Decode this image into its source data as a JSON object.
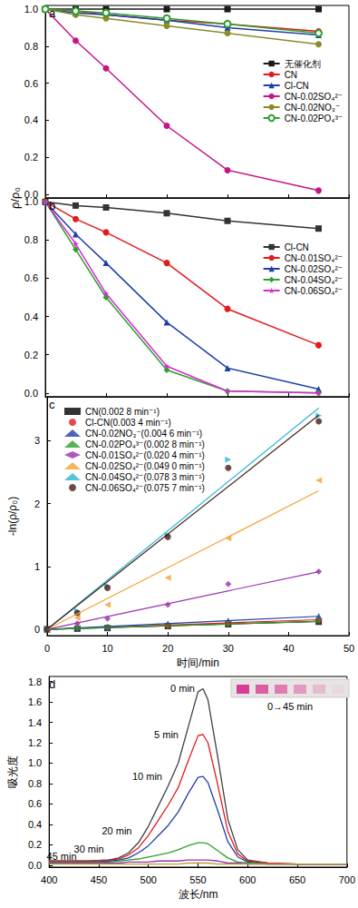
{
  "chart_data": [
    {
      "panel": "a",
      "type": "line",
      "ylabel": "ρ/ρ₀",
      "x": [
        0,
        5,
        10,
        20,
        30,
        45
      ],
      "xlim": [
        0,
        50
      ],
      "xticks": [
        0,
        10,
        20,
        30,
        40,
        50
      ],
      "ylim": [
        -0.02,
        1.02
      ],
      "yticks": [
        {
          "value": 0,
          "label": "0.0"
        },
        0.2,
        0.4,
        0.6,
        0.8,
        {
          "value": 1,
          "label": "1.0"
        }
      ],
      "tick_labels": "y",
      "grid": false,
      "legend": "right",
      "series": [
        {
          "name": "无催化剂",
          "color": "#1a1a1a",
          "marker": "square",
          "values": [
            1,
            1,
            1,
            1,
            1,
            1
          ]
        },
        {
          "name": "CN",
          "color": "#e41a1c",
          "marker": "circle",
          "values": [
            1,
            0.99,
            0.97,
            0.94,
            0.92,
            0.88
          ]
        },
        {
          "name": "Cl-CN",
          "color": "#1f3fa8",
          "marker": "triangle",
          "values": [
            1,
            0.98,
            0.97,
            0.94,
            0.9,
            0.86
          ]
        },
        {
          "name": "CN-0.02SO₄²⁻",
          "color": "#c71585",
          "marker": "circle",
          "values": [
            1,
            0.83,
            0.68,
            0.37,
            0.13,
            0.02
          ]
        },
        {
          "name": "CN-0.02NO₃⁻",
          "color": "#8b8b2a",
          "marker": "circle",
          "values": [
            1,
            0.97,
            0.95,
            0.91,
            0.87,
            0.81
          ]
        },
        {
          "name": "CN-0.02PO₄³⁻",
          "color": "#2ca02c",
          "marker": "open-circle",
          "values": [
            1,
            0.99,
            0.98,
            0.95,
            0.92,
            0.87
          ]
        }
      ]
    },
    {
      "panel": "b",
      "type": "line",
      "x": [
        0,
        5,
        10,
        20,
        30,
        45
      ],
      "xlim": [
        0,
        50
      ],
      "xticks": [
        0,
        10,
        20,
        30,
        40,
        50
      ],
      "ylim": [
        -0.02,
        1.02
      ],
      "yticks": [
        {
          "value": 0,
          "label": "0.0"
        },
        0.2,
        0.4,
        0.6,
        0.8,
        {
          "value": 1,
          "label": "1.0"
        }
      ],
      "tick_labels": "y",
      "grid": false,
      "legend": "right",
      "series": [
        {
          "name": "Cl-CN",
          "color": "#333333",
          "marker": "square",
          "values": [
            1,
            0.98,
            0.97,
            0.94,
            0.9,
            0.86
          ]
        },
        {
          "name": "CN-0.01SO₄²⁻",
          "color": "#e41a1c",
          "marker": "circle",
          "values": [
            1,
            0.91,
            0.84,
            0.68,
            0.44,
            0.25
          ]
        },
        {
          "name": "CN-0.02SO₄²⁻",
          "color": "#1f3fa8",
          "marker": "triangle",
          "values": [
            1,
            0.83,
            0.68,
            0.37,
            0.13,
            0.02
          ]
        },
        {
          "name": "CN-0.04SO₄²⁻",
          "color": "#2ca02c",
          "marker": "diamond",
          "values": [
            1,
            0.75,
            0.5,
            0.12,
            0.01,
            0
          ]
        },
        {
          "name": "CN-0.06SO₄²⁻",
          "color": "#d62ad6",
          "marker": "star",
          "values": [
            1,
            0.78,
            0.52,
            0.14,
            0.01,
            0
          ]
        }
      ]
    },
    {
      "panel": "c",
      "type": "scatter",
      "xlabel": "时间/min",
      "ylabel": "-ln(ρ/ρ₀)",
      "x": [
        0,
        5,
        10,
        20,
        30,
        45
      ],
      "fit_x": [
        0,
        45
      ],
      "xlim": [
        0,
        50
      ],
      "xticks": [
        0,
        10,
        20,
        30,
        40,
        50
      ],
      "ylim": [
        -0.1,
        3.7
      ],
      "yticks": [
        0,
        1,
        2,
        3
      ],
      "grid": false,
      "legend": "top-left",
      "series": [
        {
          "name": "CN(0.002 8 min⁻¹)",
          "color": "#000000",
          "marker": "square",
          "values": [
            0,
            0.01,
            0.02,
            0.05,
            0.08,
            0.12
          ],
          "fit": [
            0,
            0.126
          ]
        },
        {
          "name": "Cl-CN(0.003 4 min⁻¹)",
          "color": "#e41a1c",
          "marker": "circle",
          "values": [
            0,
            0.02,
            0.03,
            0.06,
            0.1,
            0.15
          ],
          "fit": [
            0,
            0.153
          ]
        },
        {
          "name": "CN-0.02NO₃⁻(0.004 6 min⁻¹)",
          "color": "#1f3fa8",
          "marker": "triangle",
          "values": [
            0,
            0.02,
            0.04,
            0.09,
            0.14,
            0.21
          ],
          "fit": [
            0,
            0.207
          ]
        },
        {
          "name": "CN-0.02PO₄³⁻(0.002 8 min⁻¹)",
          "color": "#2ca02c",
          "marker": "down-triangle",
          "values": [
            0,
            0.01,
            0.02,
            0.05,
            0.08,
            0.13
          ],
          "fit": [
            0,
            0.126
          ]
        },
        {
          "name": "CN-0.01SO₄²⁻(0.020 4 min⁻¹)",
          "color": "#9b30b0",
          "marker": "diamond",
          "values": [
            0,
            0.09,
            0.17,
            0.39,
            0.72,
            0.92
          ],
          "fit": [
            0,
            0.918
          ]
        },
        {
          "name": "CN-0.02SO₄²⁻(0.049 0 min⁻¹)",
          "color": "#f5a030",
          "marker": "left-triangle",
          "values": [
            0,
            0.18,
            0.39,
            0.82,
            1.45,
            2.37
          ],
          "fit": [
            0,
            2.205
          ]
        },
        {
          "name": "CN-0.04SO₄²⁻(0.078 3 min⁻¹)",
          "color": "#29b6d6",
          "marker": "right-triangle",
          "values": [
            0,
            0.29,
            0.69,
            1.5,
            2.7,
            3.4
          ],
          "fit": [
            0,
            3.524
          ]
        },
        {
          "name": "CN-0.06SO₄²⁻(0.075 7 min⁻¹)",
          "color": "#4b1e16",
          "marker": "circle",
          "values": [
            0,
            0.26,
            0.66,
            1.47,
            2.57,
            3.31
          ],
          "fit": [
            0,
            3.407
          ]
        }
      ]
    },
    {
      "panel": "d",
      "type": "line",
      "xlabel": "波长/nm",
      "ylabel": "吸光度",
      "annotations": [
        "0→45 min"
      ],
      "x": [
        400,
        420,
        440,
        460,
        470,
        480,
        490,
        500,
        510,
        520,
        530,
        540,
        550,
        555,
        560,
        570,
        580,
        590,
        600,
        620,
        650,
        700
      ],
      "xlim": [
        400,
        700
      ],
      "xticks": [
        400,
        450,
        500,
        550,
        600,
        650,
        700
      ],
      "ylim": [
        -0.02,
        1.85
      ],
      "yticks": [
        {
          "value": 0,
          "label": "0.0"
        },
        0.2,
        0.4,
        0.6,
        0.8,
        {
          "value": 1,
          "label": "1.0"
        },
        1.2,
        1.4,
        1.6,
        1.8
      ],
      "grid": false,
      "series": [
        {
          "name": "0 min",
          "color": "#404040",
          "values": [
            0.04,
            0.04,
            0.04,
            0.05,
            0.07,
            0.12,
            0.22,
            0.38,
            0.58,
            0.78,
            1.0,
            1.35,
            1.7,
            1.73,
            1.62,
            1.05,
            0.45,
            0.15,
            0.05,
            0.02,
            0.01,
            0.01
          ]
        },
        {
          "name": "5 min",
          "color": "#e41a1c",
          "values": [
            0.04,
            0.04,
            0.04,
            0.05,
            0.06,
            0.1,
            0.17,
            0.29,
            0.44,
            0.59,
            0.76,
            1.02,
            1.27,
            1.28,
            1.2,
            0.78,
            0.33,
            0.11,
            0.04,
            0.02,
            0.01,
            0.01
          ]
        },
        {
          "name": "10 min",
          "color": "#1f3fa8",
          "values": [
            0.03,
            0.03,
            0.03,
            0.04,
            0.05,
            0.07,
            0.12,
            0.19,
            0.29,
            0.39,
            0.52,
            0.7,
            0.86,
            0.87,
            0.81,
            0.53,
            0.23,
            0.08,
            0.03,
            0.01,
            0.01,
            0.01
          ]
        },
        {
          "name": "20 min",
          "color": "#2ca02c",
          "values": [
            0.03,
            0.03,
            0.03,
            0.03,
            0.04,
            0.05,
            0.06,
            0.08,
            0.1,
            0.12,
            0.15,
            0.19,
            0.22,
            0.22,
            0.21,
            0.14,
            0.07,
            0.03,
            0.02,
            0.01,
            0.01,
            0.01
          ]
        },
        {
          "name": "30 min",
          "color": "#9b30b0",
          "values": [
            0.02,
            0.02,
            0.02,
            0.02,
            0.02,
            0.03,
            0.03,
            0.03,
            0.04,
            0.04,
            0.04,
            0.05,
            0.05,
            0.05,
            0.05,
            0.04,
            0.02,
            0.02,
            0.01,
            0.01,
            0.01,
            0.01
          ]
        },
        {
          "name": "45 min",
          "color": "#b8a030",
          "values": [
            0.01,
            0.01,
            0.01,
            0.01,
            0.01,
            0.01,
            0.01,
            0.01,
            0.01,
            0.01,
            0.01,
            0.02,
            0.02,
            0.02,
            0.02,
            0.01,
            0.01,
            0.01,
            0.01,
            0.01,
            0.01,
            0.01
          ]
        }
      ]
    }
  ]
}
